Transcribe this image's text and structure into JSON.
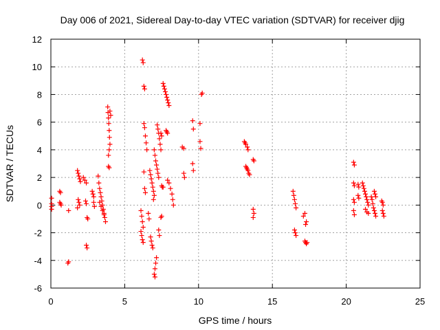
{
  "chart_data": {
    "type": "scatter",
    "title": "Day 006 of 2021, Sidereal Day-to-day VTEC variation (SDTVAR) for receiver djig",
    "xlabel": "GPS time / hours",
    "ylabel": "SDTVAR / TECUs",
    "xlim": [
      0,
      25
    ],
    "ylim": [
      -6,
      12
    ],
    "xticks": [
      0,
      5,
      10,
      15,
      20,
      25
    ],
    "yticks": [
      -6,
      -4,
      -2,
      0,
      2,
      4,
      6,
      8,
      10,
      12
    ],
    "grid": true,
    "marker": "plus",
    "color": "#ff0000",
    "series": [
      {
        "name": "SDTVAR",
        "points": [
          [
            0.05,
            0.5
          ],
          [
            0.05,
            0.1
          ],
          [
            0.05,
            -0.1
          ],
          [
            0.05,
            -0.3
          ],
          [
            0.6,
            1.0
          ],
          [
            0.65,
            0.9
          ],
          [
            0.6,
            0.2
          ],
          [
            0.65,
            0.1
          ],
          [
            0.7,
            0.0
          ],
          [
            1.2,
            -0.4
          ],
          [
            1.15,
            -4.2
          ],
          [
            1.2,
            -4.1
          ],
          [
            1.8,
            2.5
          ],
          [
            1.85,
            2.3
          ],
          [
            1.9,
            2.1
          ],
          [
            1.95,
            1.9
          ],
          [
            2.0,
            1.7
          ],
          [
            1.85,
            0.4
          ],
          [
            1.9,
            0.2
          ],
          [
            1.95,
            0.0
          ],
          [
            1.8,
            -0.2
          ],
          [
            2.2,
            2.0
          ],
          [
            2.3,
            1.8
          ],
          [
            2.4,
            1.6
          ],
          [
            2.35,
            0.3
          ],
          [
            2.4,
            0.1
          ],
          [
            2.45,
            -0.9
          ],
          [
            2.5,
            -1.0
          ],
          [
            2.4,
            -2.9
          ],
          [
            2.45,
            -3.1
          ],
          [
            2.8,
            1.0
          ],
          [
            2.85,
            0.8
          ],
          [
            2.9,
            0.6
          ],
          [
            2.9,
            0.2
          ],
          [
            2.95,
            -0.1
          ],
          [
            3.2,
            2.1
          ],
          [
            3.25,
            1.6
          ],
          [
            3.3,
            1.2
          ],
          [
            3.35,
            0.9
          ],
          [
            3.4,
            0.6
          ],
          [
            3.45,
            0.3
          ],
          [
            3.5,
            0.0
          ],
          [
            3.55,
            -0.3
          ],
          [
            3.6,
            -0.6
          ],
          [
            3.65,
            -0.9
          ],
          [
            3.7,
            -1.2
          ],
          [
            3.3,
            0.2
          ],
          [
            3.4,
            -0.1
          ],
          [
            3.5,
            -0.4
          ],
          [
            3.6,
            -0.7
          ],
          [
            3.85,
            7.1
          ],
          [
            3.87,
            6.7
          ],
          [
            3.9,
            6.3
          ],
          [
            3.92,
            5.9
          ],
          [
            3.95,
            5.4
          ],
          [
            3.97,
            4.9
          ],
          [
            4.0,
            4.4
          ],
          [
            3.95,
            4.0
          ],
          [
            3.9,
            3.6
          ],
          [
            3.9,
            2.8
          ],
          [
            3.95,
            2.7
          ],
          [
            4.0,
            6.8
          ],
          [
            4.05,
            6.5
          ],
          [
            6.2,
            10.5
          ],
          [
            6.25,
            10.3
          ],
          [
            6.3,
            8.6
          ],
          [
            6.35,
            8.4
          ],
          [
            6.1,
            -0.4
          ],
          [
            6.15,
            -0.8
          ],
          [
            6.2,
            -1.2
          ],
          [
            6.25,
            -1.6
          ],
          [
            6.1,
            -1.9
          ],
          [
            6.15,
            -2.2
          ],
          [
            6.2,
            -2.5
          ],
          [
            6.25,
            -2.7
          ],
          [
            6.3,
            5.9
          ],
          [
            6.35,
            5.6
          ],
          [
            6.4,
            5.0
          ],
          [
            6.45,
            4.5
          ],
          [
            6.5,
            4.0
          ],
          [
            6.3,
            2.4
          ],
          [
            6.35,
            1.2
          ],
          [
            6.4,
            0.9
          ],
          [
            6.6,
            -0.6
          ],
          [
            6.65,
            -1.0
          ],
          [
            6.75,
            -2.3
          ],
          [
            6.8,
            -2.6
          ],
          [
            6.85,
            -2.9
          ],
          [
            6.9,
            -3.1
          ],
          [
            6.7,
            2.5
          ],
          [
            6.75,
            2.2
          ],
          [
            6.8,
            1.9
          ],
          [
            6.85,
            1.6
          ],
          [
            6.9,
            1.3
          ],
          [
            6.95,
            1.0
          ],
          [
            7.0,
            0.7
          ],
          [
            6.95,
            0.4
          ],
          [
            7.0,
            4.0
          ],
          [
            7.05,
            3.6
          ],
          [
            7.1,
            3.2
          ],
          [
            7.15,
            2.9
          ],
          [
            7.2,
            2.6
          ],
          [
            7.25,
            2.3
          ],
          [
            7.3,
            2.0
          ],
          [
            7.15,
            -3.8
          ],
          [
            7.1,
            -4.2
          ],
          [
            7.05,
            -4.6
          ],
          [
            7.0,
            -5.0
          ],
          [
            7.05,
            -5.2
          ],
          [
            7.2,
            5.8
          ],
          [
            7.25,
            5.5
          ],
          [
            7.3,
            5.2
          ],
          [
            7.35,
            4.8
          ],
          [
            7.4,
            4.4
          ],
          [
            7.45,
            4.0
          ],
          [
            7.3,
            -1.8
          ],
          [
            7.35,
            -2.2
          ],
          [
            7.45,
            -0.9
          ],
          [
            7.5,
            -0.8
          ],
          [
            7.5,
            1.4
          ],
          [
            7.55,
            1.3
          ],
          [
            7.6,
            1.3
          ],
          [
            7.45,
            5.2
          ],
          [
            7.5,
            5.0
          ],
          [
            7.6,
            8.8
          ],
          [
            7.65,
            8.6
          ],
          [
            7.7,
            8.4
          ],
          [
            7.75,
            8.2
          ],
          [
            7.8,
            8.0
          ],
          [
            7.85,
            7.8
          ],
          [
            7.9,
            7.6
          ],
          [
            7.95,
            7.4
          ],
          [
            8.0,
            7.2
          ],
          [
            7.8,
            5.4
          ],
          [
            7.85,
            5.3
          ],
          [
            7.9,
            5.2
          ],
          [
            7.9,
            1.8
          ],
          [
            8.0,
            1.6
          ],
          [
            8.1,
            1.2
          ],
          [
            8.2,
            0.8
          ],
          [
            8.25,
            0.4
          ],
          [
            8.3,
            0.0
          ],
          [
            8.9,
            4.2
          ],
          [
            9.0,
            4.1
          ],
          [
            9.0,
            2.3
          ],
          [
            9.05,
            2.0
          ],
          [
            9.6,
            6.1
          ],
          [
            9.65,
            5.5
          ],
          [
            9.6,
            3.0
          ],
          [
            9.65,
            2.5
          ],
          [
            10.1,
            4.6
          ],
          [
            10.15,
            4.1
          ],
          [
            10.1,
            5.9
          ],
          [
            10.2,
            8.0
          ],
          [
            10.25,
            8.1
          ],
          [
            13.1,
            4.6
          ],
          [
            13.15,
            4.5
          ],
          [
            13.2,
            4.4
          ],
          [
            13.3,
            4.2
          ],
          [
            13.35,
            4.0
          ],
          [
            13.2,
            2.8
          ],
          [
            13.25,
            2.7
          ],
          [
            13.3,
            2.6
          ],
          [
            13.35,
            2.5
          ],
          [
            13.4,
            2.3
          ],
          [
            13.45,
            2.2
          ],
          [
            13.7,
            3.3
          ],
          [
            13.75,
            3.2
          ],
          [
            13.7,
            -0.3
          ],
          [
            13.75,
            -0.6
          ],
          [
            13.7,
            -0.9
          ],
          [
            16.4,
            1.0
          ],
          [
            16.45,
            0.7
          ],
          [
            16.5,
            0.4
          ],
          [
            16.55,
            0.1
          ],
          [
            16.6,
            -0.2
          ],
          [
            16.5,
            -1.8
          ],
          [
            16.55,
            -2.0
          ],
          [
            16.6,
            -2.2
          ],
          [
            17.1,
            -0.8
          ],
          [
            17.2,
            -0.6
          ],
          [
            17.25,
            -1.4
          ],
          [
            17.3,
            -1.2
          ],
          [
            17.2,
            -2.6
          ],
          [
            17.25,
            -2.7
          ],
          [
            17.3,
            -2.8
          ],
          [
            17.35,
            -2.7
          ],
          [
            20.5,
            3.1
          ],
          [
            20.55,
            2.9
          ],
          [
            20.5,
            1.6
          ],
          [
            20.55,
            1.4
          ],
          [
            20.5,
            0.4
          ],
          [
            20.55,
            0.2
          ],
          [
            20.5,
            -0.4
          ],
          [
            20.55,
            -0.7
          ],
          [
            20.8,
            1.5
          ],
          [
            20.85,
            1.3
          ],
          [
            20.8,
            0.7
          ],
          [
            20.85,
            0.5
          ],
          [
            21.1,
            1.6
          ],
          [
            21.15,
            1.4
          ],
          [
            21.2,
            1.2
          ],
          [
            21.25,
            1.0
          ],
          [
            21.3,
            0.8
          ],
          [
            21.35,
            0.6
          ],
          [
            21.4,
            0.4
          ],
          [
            21.45,
            0.2
          ],
          [
            21.5,
            0.0
          ],
          [
            21.3,
            -0.3
          ],
          [
            21.4,
            -0.5
          ],
          [
            21.5,
            -0.6
          ],
          [
            21.7,
            0.6
          ],
          [
            21.75,
            0.4
          ],
          [
            21.8,
            0.1
          ],
          [
            21.85,
            -0.2
          ],
          [
            21.9,
            -0.4
          ],
          [
            21.95,
            -0.6
          ],
          [
            22.0,
            -0.8
          ],
          [
            21.9,
            1.0
          ],
          [
            21.95,
            0.8
          ],
          [
            22.0,
            0.6
          ],
          [
            22.4,
            0.3
          ],
          [
            22.45,
            0.2
          ],
          [
            22.5,
            0.0
          ],
          [
            22.45,
            -0.4
          ],
          [
            22.5,
            -0.6
          ],
          [
            22.55,
            -0.8
          ]
        ]
      }
    ]
  }
}
